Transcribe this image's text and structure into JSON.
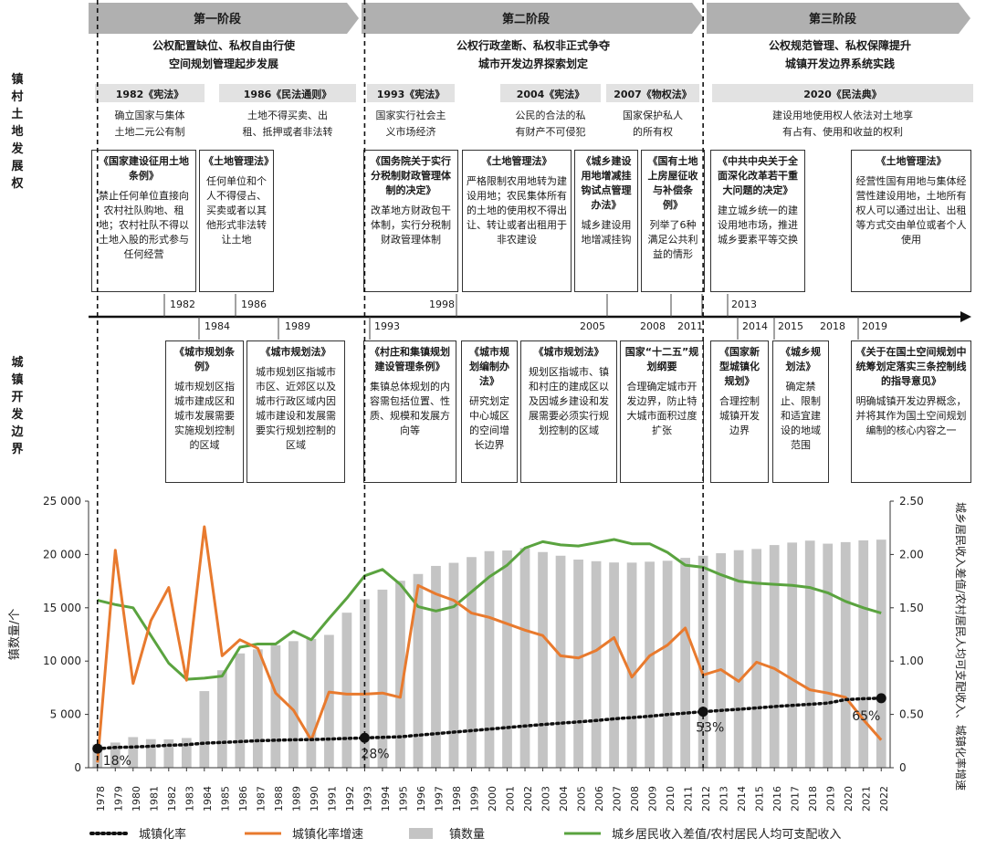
{
  "phases": [
    {
      "label": "第一阶段",
      "desc1": "公权配置缺位、私权自由行使",
      "desc2": "空间规划管理起步发展"
    },
    {
      "label": "第二阶段",
      "desc1": "公权行政垄断、私权非正式争夺",
      "desc2": "城市开发边界探索划定"
    },
    {
      "label": "第三阶段",
      "desc1": "公权规范管理、私权保障提升",
      "desc2": "城镇开发边界系统实践"
    }
  ],
  "side_labels": {
    "land": "镇村土地发展权",
    "boundary": "城镇开发边界"
  },
  "laws": [
    {
      "title": "1982《宪法》",
      "d1": "确立国家与集体",
      "d2": "土地二元公有制"
    },
    {
      "title": "1986《民法通则》",
      "d1": "土地不得买卖、出",
      "d2": "租、抵押或者非法转"
    },
    {
      "title": "1993《宪法》",
      "d1": "国家实行社会主",
      "d2": "义市场经济"
    },
    {
      "title": "2004《宪法》",
      "d1": "公民的合法的私",
      "d2": "有财产不可侵犯"
    },
    {
      "title": "2007《物权法》",
      "d1": "国家保护私人",
      "d2": "的所有权"
    },
    {
      "title": "2020《民法典》",
      "d1": "建设用地使用权人依法对土地享",
      "d2": "有占有、使用和收益的权利"
    }
  ],
  "upper_boxes": [
    {
      "title": "《国家建设征用土地条例》",
      "desc": "禁止任何单位直接向农村社队购地、租地；农村社队不得以土地入股的形式参与任何经营"
    },
    {
      "title": "《土地管理法》",
      "desc": "任何单位和个人不得侵占、买卖或者以其他形式非法转让土地"
    },
    {
      "title": "《国务院关于实行分税制财政管理体制的决定》",
      "desc": "改革地方财政包干体制，实行分税制财政管理体制"
    },
    {
      "title": "《土地管理法》",
      "desc": "严格限制农用地转为建设用地；农民集体所有的土地的使用权不得出让、转让或者出租用于非农建设"
    },
    {
      "title": "《城乡建设用地增减挂钩试点管理办法》",
      "desc": "城乡建设用地增减挂钩"
    },
    {
      "title": "《国有土地上房屋征收与补偿条例》",
      "desc": "列举了6种满足公共利益的情形"
    },
    {
      "title": "《中共中央关于全面深化改革若干重大问题的决定》",
      "desc": "建立城乡统一的建设用地市场，推进城乡要素平等交换"
    },
    {
      "title": "《土地管理法》",
      "desc": "经营性国有用地与集体经营性建设用地，土地所有权人可以通过出让、出租等方式交由单位或者个人使用"
    }
  ],
  "lower_boxes": [
    {
      "title": "《城市规划条例》",
      "desc": "城市规划区指城市建成区和城市发展需要实施规划控制的区域"
    },
    {
      "title": "《城市规划法》",
      "desc": "城市规划区指城市市区、近郊区以及城市行政区域内因城市建设和发展需要实行规划控制的区域"
    },
    {
      "title": "《村庄和集镇规划建设管理条例》",
      "desc": "集镇总体规划的内容需包括位置、性质、规模和发展方向等"
    },
    {
      "title": "《城市规划编制办法》",
      "desc": "研究划定中心城区的空间增长边界"
    },
    {
      "title": "《城市规划法》",
      "desc": "规划区指城市、镇和村庄的建成区以及因城乡建设和发展需要必须实行规划控制的区域"
    },
    {
      "title": "国家“十二五”规划纲要",
      "desc": "合理确定城市开发边界，防止特大城市面积过度扩张"
    },
    {
      "title": "《国家新型城镇化规划》",
      "desc": "合理控制城镇开发边界"
    },
    {
      "title": "《城乡规划法》",
      "desc": "确定禁止、限制和适宜建设的地域范围"
    },
    {
      "title": "《关于在国土空间规划中统筹划定落实三条控制线的指导意见》",
      "desc": "明确城镇开发边界概念，并将其作为国土空间规划编制的核心内容之一"
    }
  ],
  "timeline_years": {
    "above": [
      "1982",
      "1986",
      "1998",
      "2005",
      "2008",
      "2011",
      "2013"
    ],
    "below": [
      "1984",
      "1989",
      "1993",
      "2014",
      "2015",
      "2018",
      "2019"
    ]
  },
  "colors": {
    "bars": "#c4c4c4",
    "growth": "#e87a2e",
    "ratio": "#5aa33f",
    "urban": "#111111",
    "phase_arrow": "#b0b0b0"
  },
  "chart_data": {
    "type": "bar",
    "x": [
      "1978",
      "1979",
      "1980",
      "1981",
      "1982",
      "1983",
      "1984",
      "1985",
      "1986",
      "1987",
      "1988",
      "1989",
      "1990",
      "1991",
      "1992",
      "1993",
      "1994",
      "1995",
      "1996",
      "1997",
      "1998",
      "1999",
      "2000",
      "2001",
      "2002",
      "2003",
      "2004",
      "2005",
      "2006",
      "2007",
      "2008",
      "2009",
      "2010",
      "2011",
      "2012",
      "2013",
      "2014",
      "2015",
      "2016",
      "2017",
      "2018",
      "2019",
      "2020",
      "2021",
      "2022"
    ],
    "ylabel_left": "镇数量/个",
    "ylabel_right": "城乡居民收入差值/农村居民人均可支配收入、城镇化率增速",
    "ylim_left": [
      0,
      25000
    ],
    "ylim_right": [
      0,
      2.5
    ],
    "yticks_left": [
      "0",
      "5 000",
      "10 000",
      "15 000",
      "20 000",
      "25 000"
    ],
    "yticks_right": [
      "0",
      "0.50",
      "1.00",
      "1.50",
      "2.00",
      "2.50"
    ],
    "series": [
      {
        "name": "镇数量",
        "type": "bar",
        "axis": "left",
        "values": [
          2173,
          2361,
          2874,
          2678,
          2660,
          2786,
          7186,
          9140,
          10717,
          11103,
          11481,
          11873,
          12084,
          12455,
          14539,
          15805,
          16702,
          17532,
          18171,
          18925,
          19216,
          19756,
          20312,
          20374,
          20601,
          20226,
          19883,
          19522,
          19369,
          19249,
          19234,
          19322,
          19410,
          19683,
          19881,
          20117,
          20401,
          20515,
          20883,
          21116,
          21297,
          21013,
          21157,
          21322,
          21389
        ]
      },
      {
        "name": "城镇化率",
        "type": "line",
        "style": "dotted",
        "axis": "right",
        "values": [
          0.179,
          0.19,
          0.194,
          0.201,
          0.211,
          0.216,
          0.23,
          0.237,
          0.245,
          0.253,
          0.258,
          0.262,
          0.264,
          0.269,
          0.275,
          0.28,
          0.285,
          0.29,
          0.305,
          0.319,
          0.334,
          0.348,
          0.362,
          0.377,
          0.391,
          0.405,
          0.418,
          0.43,
          0.443,
          0.459,
          0.47,
          0.483,
          0.499,
          0.512,
          0.526,
          0.537,
          0.548,
          0.561,
          0.574,
          0.585,
          0.595,
          0.606,
          0.639,
          0.647,
          0.652
        ]
      },
      {
        "name": "城镇化率增速",
        "type": "line",
        "axis": "right",
        "values": [
          0.05,
          2.04,
          0.79,
          1.38,
          1.69,
          0.82,
          2.26,
          1.05,
          1.2,
          1.12,
          0.7,
          0.54,
          0.26,
          0.71,
          0.69,
          0.69,
          0.7,
          0.66,
          1.71,
          1.63,
          1.57,
          1.45,
          1.41,
          1.35,
          1.29,
          1.24,
          1.05,
          1.03,
          1.1,
          1.22,
          0.85,
          1.05,
          1.15,
          1.31,
          0.87,
          0.92,
          0.81,
          0.99,
          0.93,
          0.83,
          0.73,
          0.7,
          0.66,
          0.45,
          0.26
        ]
      },
      {
        "name": "城乡居民收入差值/农村居民人均可支配收入",
        "type": "line",
        "axis": "right",
        "values": [
          1.57,
          1.53,
          1.5,
          1.24,
          0.98,
          0.83,
          0.84,
          0.86,
          1.13,
          1.16,
          1.16,
          1.28,
          1.2,
          1.4,
          1.59,
          1.8,
          1.86,
          1.72,
          1.51,
          1.47,
          1.51,
          1.65,
          1.79,
          1.9,
          2.06,
          2.12,
          2.09,
          2.08,
          2.11,
          2.14,
          2.1,
          2.1,
          2.02,
          1.9,
          1.88,
          1.81,
          1.75,
          1.73,
          1.72,
          1.71,
          1.69,
          1.64,
          1.56,
          1.5,
          1.45
        ]
      }
    ],
    "annotations": [
      {
        "year": "1978",
        "label": "18%"
      },
      {
        "year": "1993",
        "label": "28%"
      },
      {
        "year": "2012",
        "label": "53%"
      },
      {
        "year": "2022",
        "label": "65%"
      }
    ],
    "legend": [
      "城镇化率",
      "城镇化率增速",
      "镇数量",
      "城乡居民收入差值/农村居民人均可支配收入"
    ],
    "legend_position": "bottom"
  }
}
